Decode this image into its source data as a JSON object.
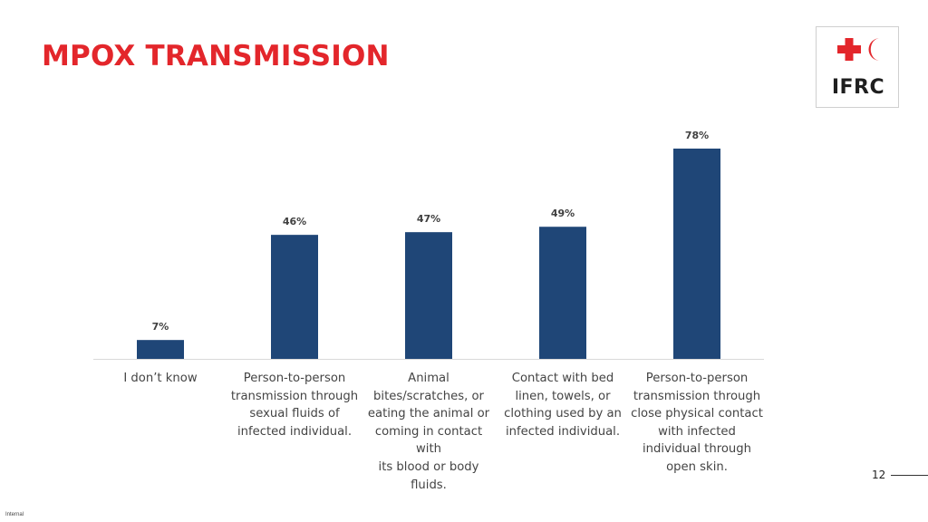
{
  "slide": {
    "title": "MPOX TRANSMISSION",
    "page_number": "12",
    "footer_note": "Internal"
  },
  "logo": {
    "text": "IFRC",
    "icons": [
      "red-cross-icon",
      "red-crescent-icon"
    ],
    "color": "#e3262b"
  },
  "colors": {
    "title": "#e3262b",
    "bar": "#1f4677",
    "axis": "#d9d9d9"
  },
  "chart_data": {
    "type": "bar",
    "title": "",
    "xlabel": "",
    "ylabel": "",
    "ylim": [
      0,
      80
    ],
    "grid": false,
    "legend": "none",
    "categories": [
      "I don’t know",
      "Person-to-person transmission through sexual fluids of infected individual.",
      "Animal bites/scratches, or eating the animal or coming in contact with its blood or body fluids.",
      "Contact with bed linen, towels, or clothing used by an infected individual.",
      "Person-to-person transmission through close physical contact with infected individual through open skin."
    ],
    "category_lines": [
      [
        "I don’t know"
      ],
      [
        "Person-to-person",
        "transmission through",
        "sexual fluids of",
        "infected individual."
      ],
      [
        "Animal",
        "bites/scratches, or",
        "eating the animal or",
        "coming in contact with",
        "its blood or body",
        "fluids."
      ],
      [
        "Contact with bed",
        "linen, towels, or",
        "clothing used by an",
        "infected individual."
      ],
      [
        "Person-to-person",
        "transmission through",
        "close physical contact",
        "with infected",
        "individual through",
        "open skin."
      ]
    ],
    "values": [
      7,
      46,
      47,
      49,
      78
    ],
    "data_labels": [
      "7%",
      "46%",
      "47%",
      "49%",
      "78%"
    ],
    "unit": "%"
  }
}
